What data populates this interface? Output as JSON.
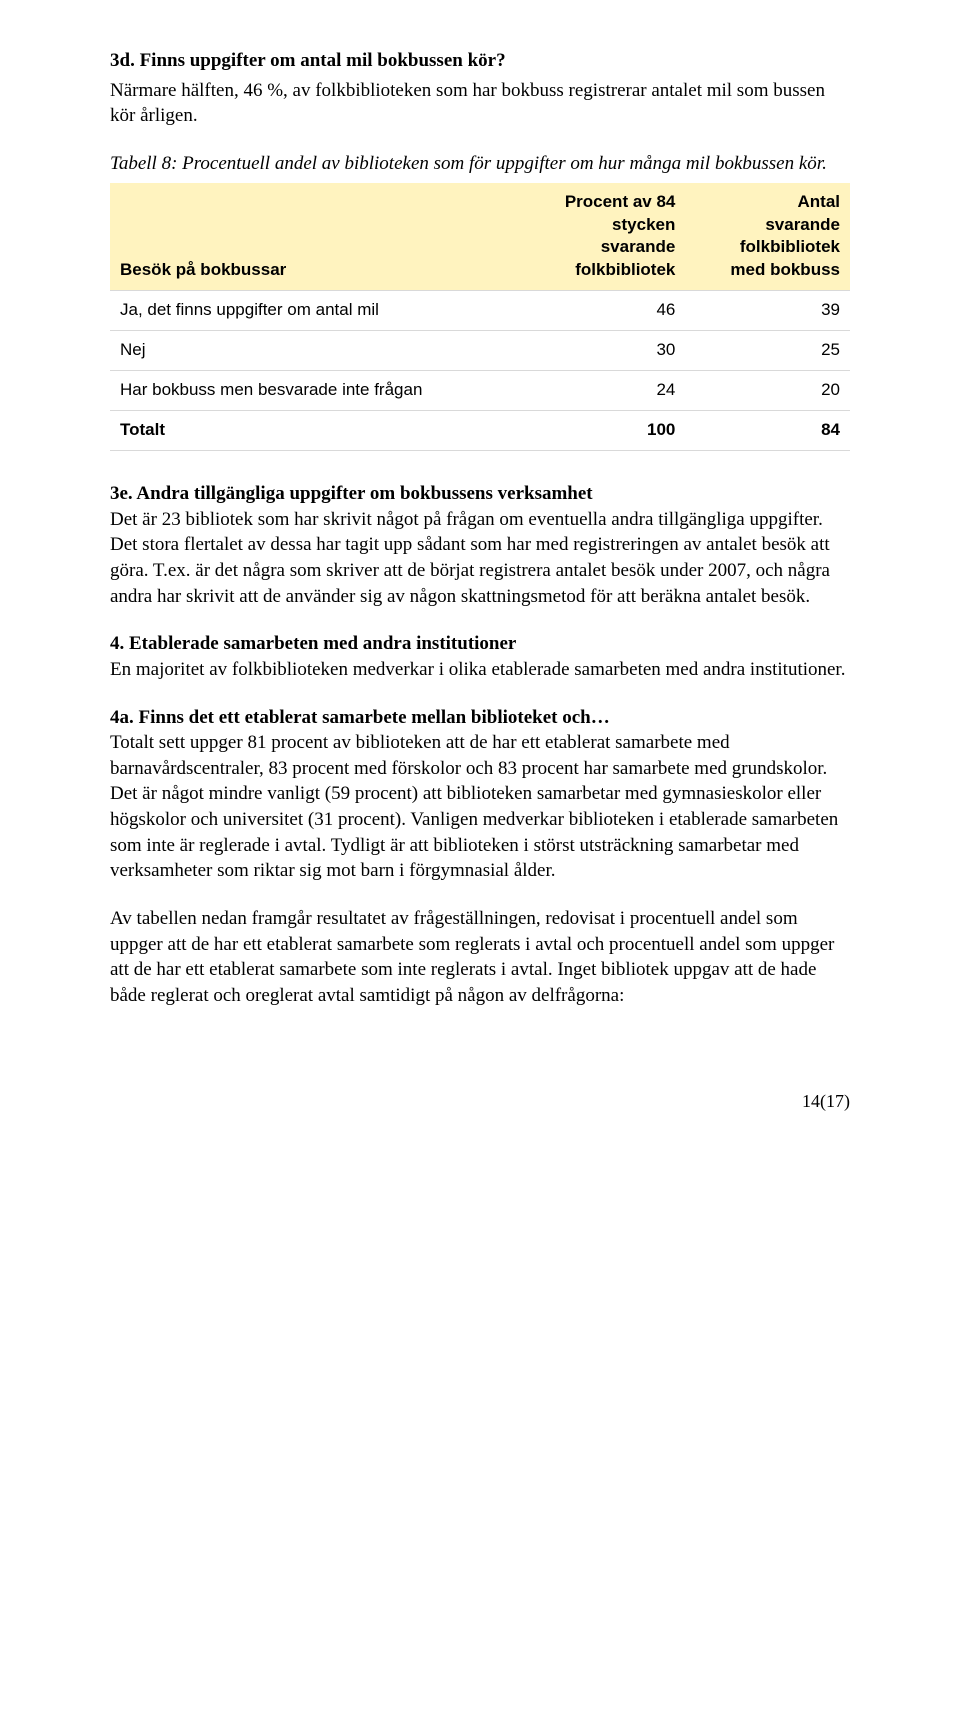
{
  "section3d": {
    "heading": "3d. Finns uppgifter om antal mil bokbussen kör?",
    "body": "Närmare hälften, 46 %, av folkbiblioteken som har bokbuss registrerar antalet mil som bussen kör årligen."
  },
  "table8": {
    "caption": "Tabell 8: Procentuell andel av biblioteken som för uppgifter om hur många mil bokbussen kör.",
    "header_bg": "#fff3bf",
    "border_color": "#d9d9d9",
    "col0": "Besök på bokbussar",
    "col1": "Procent av 84\nstycken\nsvarande\nfolkbibliotek",
    "col2": "Antal\nsvarande\nfolkbibliotek\nmed bokbuss",
    "rows": [
      {
        "label": "Ja, det finns uppgifter om antal mil",
        "v1": "46",
        "v2": "39"
      },
      {
        "label": "Nej",
        "v1": "30",
        "v2": "25"
      },
      {
        "label": "Har bokbuss men besvarade inte frågan",
        "v1": "24",
        "v2": "20"
      },
      {
        "label": "Totalt",
        "v1": "100",
        "v2": "84"
      }
    ]
  },
  "section3e": {
    "heading": "3e. Andra tillgängliga uppgifter om bokbussens verksamhet",
    "body": "Det är 23 bibliotek som har skrivit något på frågan om eventuella andra tillgängliga uppgifter. Det stora flertalet av dessa har tagit upp sådant som har med registreringen av antalet besök att göra. T.ex. är det några som skriver att de börjat registrera antalet besök under 2007, och några andra har skrivit att de använder sig av någon skattningsmetod för att beräkna antalet besök."
  },
  "section4": {
    "heading": "4. Etablerade samarbeten med andra institutioner",
    "body": "En majoritet av folkbiblioteken medverkar i olika etablerade samarbeten med andra institutioner."
  },
  "section4a": {
    "heading": "4a. Finns det ett etablerat samarbete mellan biblioteket och…",
    "body": "Totalt sett uppger 81 procent av biblioteken att de har ett etablerat samarbete med barnavårdscentraler, 83 procent med förskolor och 83 procent har samarbete med grundskolor. Det är något mindre vanligt (59 procent) att biblioteken samarbetar med gymnasieskolor eller högskolor och universitet (31 procent). Vanligen medverkar biblioteken i etablerade samarbeten som inte är reglerade i avtal. Tydligt är att biblioteken i störst utsträckning samarbetar med verksamheter som riktar sig mot barn i förgymnasial ålder."
  },
  "section4a_followup": {
    "body": "Av tabellen nedan framgår resultatet av frågeställningen, redovisat i procentuell andel som uppger att de har ett etablerat samarbete som reglerats i avtal och procentuell andel som uppger att de har ett etablerat samarbete som inte reglerats i avtal. Inget bibliotek uppgav att de hade både reglerat och oreglerat avtal samtidigt på någon av delfrågorna:"
  },
  "page_number": "14(17)"
}
